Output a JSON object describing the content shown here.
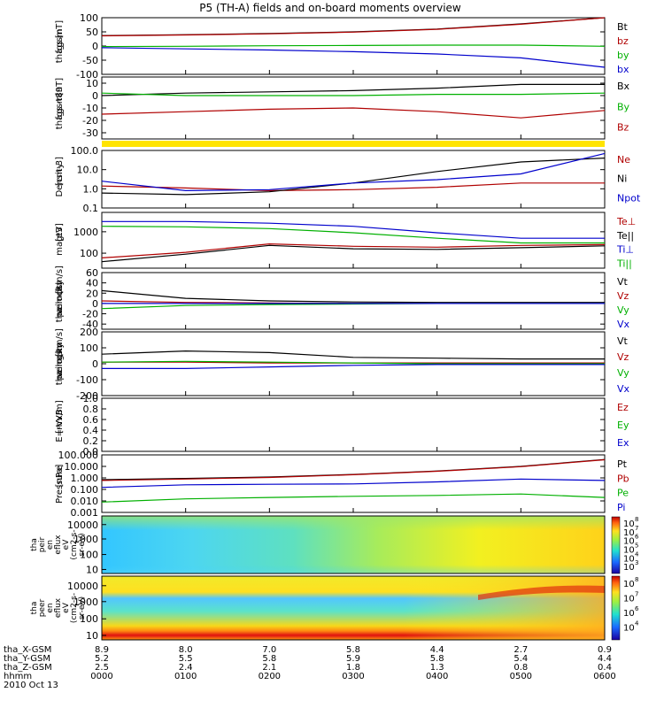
{
  "title": "P5 (TH-A) fields and on-board moments overview",
  "chart_data": {
    "type": "line",
    "title": "P5 (TH-A) fields and on-board moments overview",
    "xlabel": "hhmm",
    "x": [
      "0000",
      "0100",
      "0200",
      "0300",
      "0400",
      "0500",
      "0600"
    ],
    "date": "2010 Oct 13",
    "ephemeris": [
      {
        "name": "tha_X-GSM",
        "values": [
          "8.9",
          "8.0",
          "7.0",
          "5.8",
          "4.4",
          "2.7",
          "0.9"
        ]
      },
      {
        "name": "tha_Y-GSM",
        "values": [
          "5.2",
          "5.5",
          "5.8",
          "5.9",
          "5.8",
          "5.4",
          "4.4"
        ]
      },
      {
        "name": "tha_Z-GSM",
        "values": [
          "2.5",
          "2.4",
          "2.1",
          "1.8",
          "1.3",
          "0.8",
          "0.4"
        ]
      }
    ],
    "panels": [
      {
        "ylabel": [
          "tha",
          "fgs",
          "gsm",
          "[nT]"
        ],
        "ylim": [
          -100,
          100
        ],
        "yticks": [
          "100",
          "50",
          "0",
          "-50",
          "-100"
        ],
        "series": [
          {
            "name": "Bt",
            "color": "#000000",
            "values": [
              37,
              40,
              44,
              50,
              60,
              78,
              105
            ]
          },
          {
            "name": "bz",
            "color": "#b00000",
            "values": [
              36,
              39,
              43,
              49,
              59,
              77,
              104
            ]
          },
          {
            "name": "by",
            "color": "#00b000",
            "values": [
              -2,
              -1,
              1,
              2,
              3,
              3,
              -1
            ]
          },
          {
            "name": "bx",
            "color": "#0000cc",
            "values": [
              -6,
              -10,
              -14,
              -20,
              -28,
              -42,
              -75
            ]
          }
        ]
      },
      {
        "ylabel": [
          "tha",
          "fgs",
          "gsm",
          "-t89",
          "[nT]"
        ],
        "ylim": [
          -35,
          15
        ],
        "yticks": [
          "10",
          "0",
          "-10",
          "-20",
          "-30"
        ],
        "series": [
          {
            "name": "Bx",
            "color": "#000000",
            "values": [
              0,
              2,
              3,
              4,
              6,
              9,
              9
            ]
          },
          {
            "name": "By",
            "color": "#00b000",
            "values": [
              2,
              0,
              0,
              0,
              1,
              1,
              2
            ]
          },
          {
            "name": "Bz",
            "color": "#b00000",
            "values": [
              -15,
              -13,
              -11,
              -10,
              -13,
              -18,
              -12
            ]
          }
        ]
      },
      {
        "ylabel": [
          "Density",
          "[cm-3]"
        ],
        "ylim": [
          0.1,
          100
        ],
        "log": true,
        "yticks": [
          "100.0",
          "10.0",
          "1.0",
          "0.1"
        ],
        "series": [
          {
            "name": "Ne",
            "color": "#b00000",
            "values": [
              1.4,
              1.1,
              0.8,
              0.9,
              1.2,
              2.0,
              2.0
            ]
          },
          {
            "name": "Ni",
            "color": "#000000",
            "values": [
              0.6,
              0.5,
              0.7,
              2.0,
              8.0,
              25,
              40
            ]
          },
          {
            "name": "Npot",
            "color": "#0000cc",
            "values": [
              2.5,
              0.8,
              0.9,
              2.0,
              3.0,
              6.0,
              70
            ]
          }
        ]
      },
      {
        "ylabel": [
          "magt3",
          "[eV]"
        ],
        "ylim": [
          20,
          8000
        ],
        "log": true,
        "yticks": [
          "1000",
          "100"
        ],
        "series": [
          {
            "name": "Te⊥",
            "color": "#b00000",
            "values": [
              60,
              110,
              270,
              210,
              190,
              230,
              250
            ]
          },
          {
            "name": "Te||",
            "color": "#000000",
            "values": [
              40,
              90,
              230,
              160,
              150,
              180,
              220
            ]
          },
          {
            "name": "Ti⊥",
            "color": "#0000cc",
            "values": [
              3000,
              3000,
              2500,
              1800,
              900,
              500,
              500
            ]
          },
          {
            "name": "Ti||",
            "color": "#00b000",
            "values": [
              1800,
              1700,
              1400,
              900,
              500,
              300,
              300
            ]
          }
        ]
      },
      {
        "ylabel": [
          "tha",
          "peim",
          "velocity",
          "dsl",
          "[km/s]"
        ],
        "ylim": [
          -50,
          60
        ],
        "yticks": [
          "60",
          "40",
          "20",
          "0",
          "-20",
          "-40"
        ],
        "series": [
          {
            "name": "Vt",
            "color": "#000000",
            "values": [
              25,
              10,
              5,
              3,
              2,
              2,
              2
            ]
          },
          {
            "name": "Vz",
            "color": "#b00000",
            "values": [
              5,
              2,
              1,
              0,
              0,
              0,
              0
            ]
          },
          {
            "name": "Vy",
            "color": "#00b000",
            "values": [
              -10,
              -4,
              -2,
              -1,
              0,
              0,
              0
            ]
          },
          {
            "name": "Vx",
            "color": "#0000cc",
            "values": [
              0,
              0,
              0,
              0,
              0,
              0,
              0
            ]
          }
        ]
      },
      {
        "ylabel": [
          "tha",
          "peim",
          "velocity",
          "gsm",
          "[km/s]"
        ],
        "ylim": [
          -200,
          200
        ],
        "yticks": [
          "200",
          "100",
          "0",
          "-100",
          "-200"
        ],
        "series": [
          {
            "name": "Vt",
            "color": "#000000",
            "values": [
              60,
              80,
              70,
              40,
              35,
              30,
              30
            ]
          },
          {
            "name": "Vz",
            "color": "#b00000",
            "values": [
              10,
              10,
              5,
              5,
              5,
              5,
              5
            ]
          },
          {
            "name": "Vy",
            "color": "#00b000",
            "values": [
              10,
              15,
              10,
              5,
              0,
              0,
              0
            ]
          },
          {
            "name": "Vx",
            "color": "#0000cc",
            "values": [
              -30,
              -30,
              -20,
              -10,
              -5,
              -5,
              -5
            ]
          }
        ]
      },
      {
        "ylabel": [
          "E=-VxB",
          "[mV/m]"
        ],
        "ylim": [
          0,
          1
        ],
        "yticks": [
          "1.0",
          "0.8",
          "0.6",
          "0.4",
          "0.2",
          "0.0"
        ],
        "series": [
          {
            "name": "Ez",
            "color": "#b00000",
            "values": []
          },
          {
            "name": "Ey",
            "color": "#00b000",
            "values": []
          },
          {
            "name": "Ex",
            "color": "#0000cc",
            "values": []
          }
        ]
      },
      {
        "ylabel": [
          "Pressure",
          "[nPa]"
        ],
        "ylim": [
          0.001,
          100
        ],
        "log": true,
        "yticks": [
          "100.000",
          "10.000",
          "1.000",
          "0.100",
          "0.010",
          "0.001"
        ],
        "series": [
          {
            "name": "Pt",
            "color": "#000000",
            "values": [
              0.7,
              0.9,
              1.2,
              2.0,
              4.0,
              10,
              40
            ]
          },
          {
            "name": "Pb",
            "color": "#b00000",
            "values": [
              0.6,
              0.8,
              1.1,
              1.9,
              3.8,
              9.5,
              38
            ]
          },
          {
            "name": "Pe",
            "color": "#00b000",
            "values": [
              0.008,
              0.015,
              0.02,
              0.025,
              0.03,
              0.04,
              0.02
            ]
          },
          {
            "name": "Pi",
            "color": "#0000cc",
            "values": [
              0.15,
              0.25,
              0.28,
              0.3,
              0.45,
              0.8,
              0.6
            ]
          }
        ]
      }
    ],
    "spectrograms": [
      {
        "ylabel": [
          "tha",
          "peir",
          "en",
          "eflux",
          "eV",
          "(cm2-s-",
          "sr-eV)"
        ],
        "yticks": [
          "10000",
          "1000",
          "100",
          "10"
        ],
        "colorbar": [
          "10",
          "10",
          "10",
          "10",
          "10",
          "10"
        ],
        "colorbar_exp": [
          "8",
          "7",
          "6",
          "5",
          "4",
          "3"
        ]
      },
      {
        "ylabel": [
          "tha",
          "peer",
          "en",
          "eflux",
          "eV",
          "(cm2-s-",
          "sr-eV)"
        ],
        "yticks": [
          "10000",
          "1000",
          "100",
          "10"
        ],
        "colorbar": [
          "10",
          "10",
          "10",
          "10"
        ],
        "colorbar_exp": [
          "8",
          "7",
          "6",
          "4"
        ]
      }
    ]
  },
  "colors": {
    "black": "#000000",
    "red": "#b00000",
    "green": "#00b000",
    "blue": "#0000cc",
    "yellow_bar": "#ffe400"
  }
}
